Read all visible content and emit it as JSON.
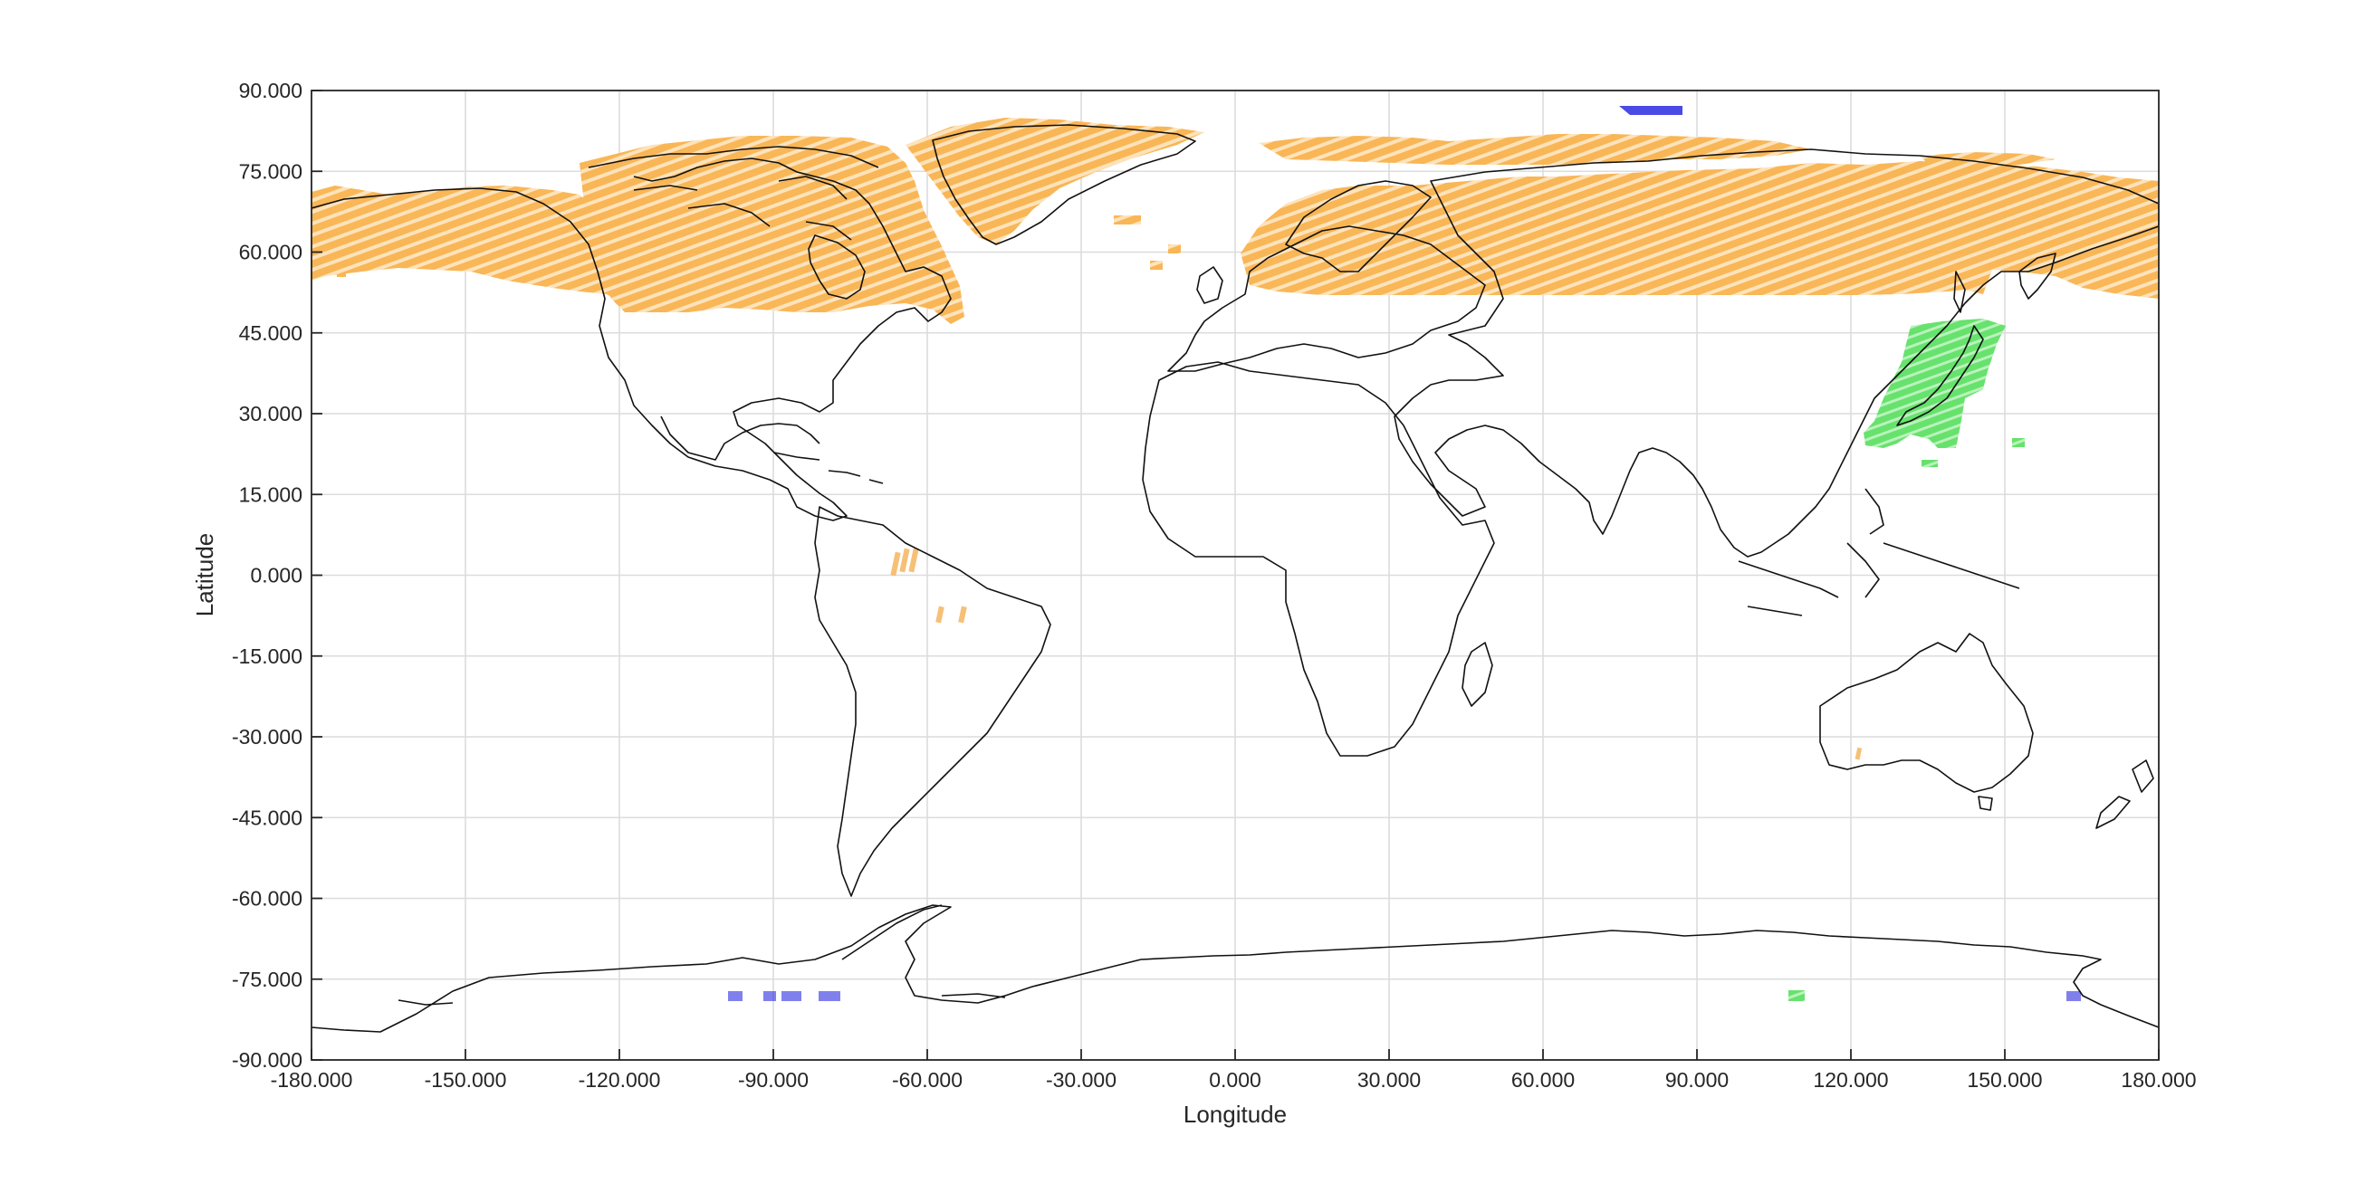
{
  "plot": {
    "x_label": "Longitude",
    "y_label": "Latitude",
    "x_ticks": [
      "-180.000",
      "-150.000",
      "-120.000",
      "-90.000",
      "-60.000",
      "-30.000",
      "0.000",
      "30.000",
      "60.000",
      "90.000",
      "120.000",
      "150.000",
      "180.000"
    ],
    "y_ticks": [
      "90.000",
      "75.000",
      "60.000",
      "45.000",
      "30.000",
      "15.000",
      "0.000",
      "-15.000",
      "-30.000",
      "-45.000",
      "-60.000",
      "-75.000",
      "-90.000"
    ],
    "xlim": [
      -180,
      180
    ],
    "ylim": [
      -90,
      90
    ],
    "grid": true
  },
  "colors": {
    "orange_swaths": "#f7a230",
    "green_swaths": "#4ddc52",
    "blue_swaths": "#2a2ae0",
    "coastline": "#111111",
    "grid": "#d9d9d9",
    "axis": "#262626"
  },
  "chart_data": {
    "type": "scatter",
    "xlabel": "Longitude",
    "ylabel": "Latitude",
    "xlim": [
      -180,
      180
    ],
    "ylim": [
      -90,
      90
    ],
    "grid": true,
    "coverage": {
      "orange": [
        {
          "lon": [
            -180,
            -127
          ],
          "lat": [
            50,
            72
          ]
        },
        {
          "lon": [
            -127,
            -55
          ],
          "lat": [
            47,
            82
          ]
        },
        {
          "lon": [
            -55,
            -5
          ],
          "lat": [
            60,
            84
          ]
        },
        {
          "lon": [
            -5,
            180
          ],
          "lat": [
            51,
            82
          ]
        },
        {
          "lon": [
            -67,
            -63
          ],
          "lat": [
            0,
            5
          ]
        },
        {
          "lon": [
            -57,
            -52
          ],
          "lat": [
            -9,
            -7
          ]
        },
        {
          "lon": [
            122,
            123
          ],
          "lat": [
            -34,
            -32
          ]
        }
      ],
      "green": [
        {
          "lon": [
            122,
            152
          ],
          "lat": [
            24,
            46
          ]
        },
        {
          "lon": [
            109,
            112
          ],
          "lat": [
            -78,
            -79
          ]
        }
      ],
      "blue": [
        {
          "lon": [
            76,
            87
          ],
          "lat": [
            86,
            87
          ]
        },
        {
          "lon": [
            -99,
            -76
          ],
          "lat": [
            -78,
            -79
          ]
        },
        {
          "lon": [
            162,
            165
          ],
          "lat": [
            -78,
            -79
          ]
        }
      ]
    }
  }
}
